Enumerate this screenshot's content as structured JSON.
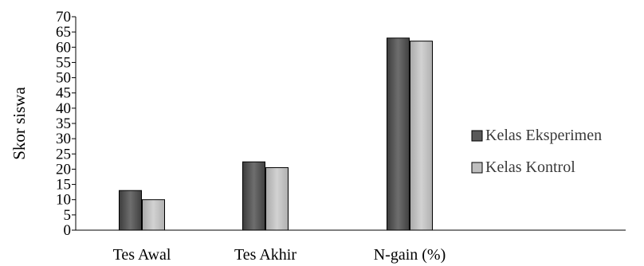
{
  "chart_data": {
    "type": "bar",
    "categories": [
      "Tes Awal",
      "Tes Akhir",
      "N-gain (%)"
    ],
    "series": [
      {
        "name": "Kelas Eksperimen",
        "values": [
          13,
          22.4,
          63
        ]
      },
      {
        "name": "Kelas Kontrol",
        "values": [
          10,
          20.5,
          62
        ]
      }
    ],
    "ylabel": "Skor siswa",
    "ylim": [
      0,
      70
    ],
    "yticks": [
      0,
      5,
      10,
      15,
      20,
      25,
      30,
      35,
      40,
      45,
      50,
      55,
      60,
      65,
      70
    ],
    "grid": false,
    "legend_position": "right",
    "colors": {
      "Kelas Eksperimen": "#595959",
      "Kelas Kontrol": "#bfbfbf",
      "edge": "#000000",
      "axis": "#000000"
    }
  }
}
